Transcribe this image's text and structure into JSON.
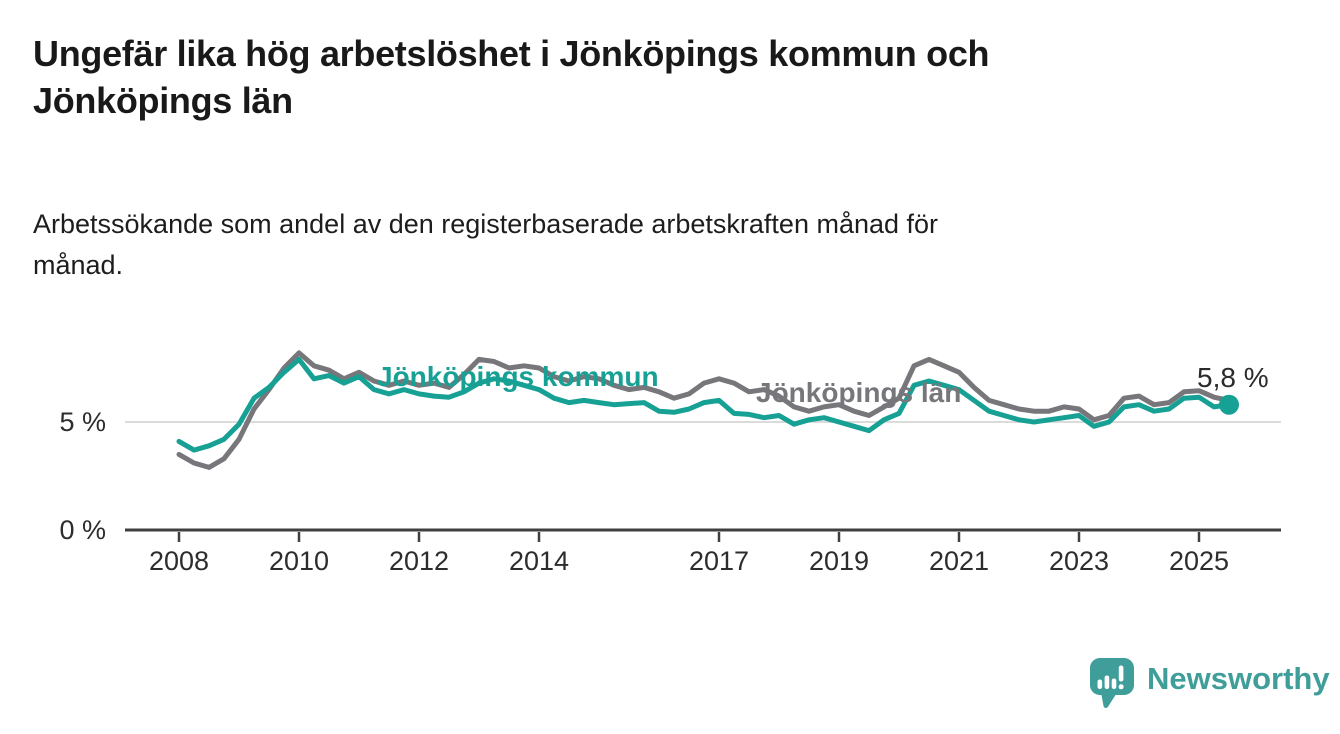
{
  "header": {
    "title_lines": [
      "Ungefär lika hög arbetslöshet i Jönköpings kommun och",
      "Jönköpings län"
    ],
    "subtitle_lines": [
      "Arbetssökande som andel av den registerbaserade arbetskraften månad för",
      "månad."
    ]
  },
  "chart_data": {
    "type": "line",
    "title": "Ungefär lika hög arbetslöshet i Jönköpings kommun och Jönköpings län",
    "subtitle": "Arbetssökande som andel av den registerbaserade arbetskraften månad för månad.",
    "unit": "%",
    "x_axis": {
      "ticks": [
        {
          "year": 2008,
          "label": "2008"
        },
        {
          "year": 2010,
          "label": "2010"
        },
        {
          "year": 2012,
          "label": "2012"
        },
        {
          "year": 2014,
          "label": "2014"
        },
        {
          "year": 2017,
          "label": "2017"
        },
        {
          "year": 2019,
          "label": "2019"
        },
        {
          "year": 2021,
          "label": "2021"
        },
        {
          "year": 2023,
          "label": "2023"
        },
        {
          "year": 2025,
          "label": "2025"
        }
      ]
    },
    "y_axis": {
      "ticks": [
        {
          "value": 5,
          "label": "5 %"
        },
        {
          "value": 0,
          "label": "0 %"
        }
      ],
      "gridline_values": [
        5
      ],
      "ylim": [
        0,
        8.6
      ],
      "gridline_color": "#dbdbdb",
      "axis_color": "#3f3f3f"
    },
    "series": [
      {
        "name": "Jönköpings län",
        "color": "#76767b",
        "x_start": 2008,
        "x_step": 0.25,
        "values": [
          3.5,
          3.1,
          2.9,
          3.3,
          4.2,
          5.6,
          6.5,
          7.5,
          8.2,
          7.6,
          7.4,
          7.0,
          7.3,
          6.9,
          6.7,
          6.9,
          6.7,
          6.8,
          6.6,
          7.2,
          7.9,
          7.8,
          7.5,
          7.6,
          7.5,
          7.1,
          6.9,
          7.1,
          7.0,
          6.7,
          6.5,
          6.6,
          6.4,
          6.1,
          6.3,
          6.8,
          7.0,
          6.8,
          6.4,
          6.5,
          6.2,
          5.7,
          5.5,
          5.7,
          5.8,
          5.5,
          5.3,
          5.7,
          6.1,
          7.6,
          7.9,
          7.6,
          7.3,
          6.6,
          6.0,
          5.8,
          5.6,
          5.5,
          5.5,
          5.7,
          5.6,
          5.1,
          5.3,
          6.1,
          6.2,
          5.8,
          5.9,
          6.4,
          6.45,
          6.15,
          6.0
        ],
        "end_dot": false
      },
      {
        "name": "Jönköpings kommun",
        "color": "#17a094",
        "x_start": 2008,
        "x_step": 0.25,
        "values": [
          4.1,
          3.7,
          3.9,
          4.2,
          4.9,
          6.1,
          6.6,
          7.3,
          7.9,
          7.0,
          7.15,
          6.8,
          7.1,
          6.5,
          6.3,
          6.5,
          6.3,
          6.2,
          6.15,
          6.4,
          6.8,
          7.0,
          6.9,
          6.7,
          6.5,
          6.1,
          5.9,
          6.0,
          5.9,
          5.8,
          5.85,
          5.9,
          5.5,
          5.45,
          5.6,
          5.9,
          6.0,
          5.4,
          5.35,
          5.2,
          5.3,
          4.9,
          5.1,
          5.2,
          5.0,
          4.8,
          4.6,
          5.1,
          5.4,
          6.7,
          6.9,
          6.7,
          6.5,
          6.0,
          5.5,
          5.3,
          5.1,
          5.0,
          5.1,
          5.2,
          5.3,
          4.8,
          5.0,
          5.7,
          5.8,
          5.5,
          5.6,
          6.1,
          6.15,
          5.7,
          5.8
        ],
        "end_dot": true
      }
    ],
    "series_labels": [
      {
        "text": "Jönköpings kommun",
        "color": "#17a094"
      },
      {
        "text": "Jönköpings län",
        "color": "#76767b"
      }
    ],
    "annotation": {
      "text": "5,8 %",
      "value": 5.8
    }
  },
  "footer": {
    "brand": "Newsworthy",
    "brand_color": "#3f9e99",
    "logo_icon": "speech-bubble-bar-chart-icon"
  }
}
